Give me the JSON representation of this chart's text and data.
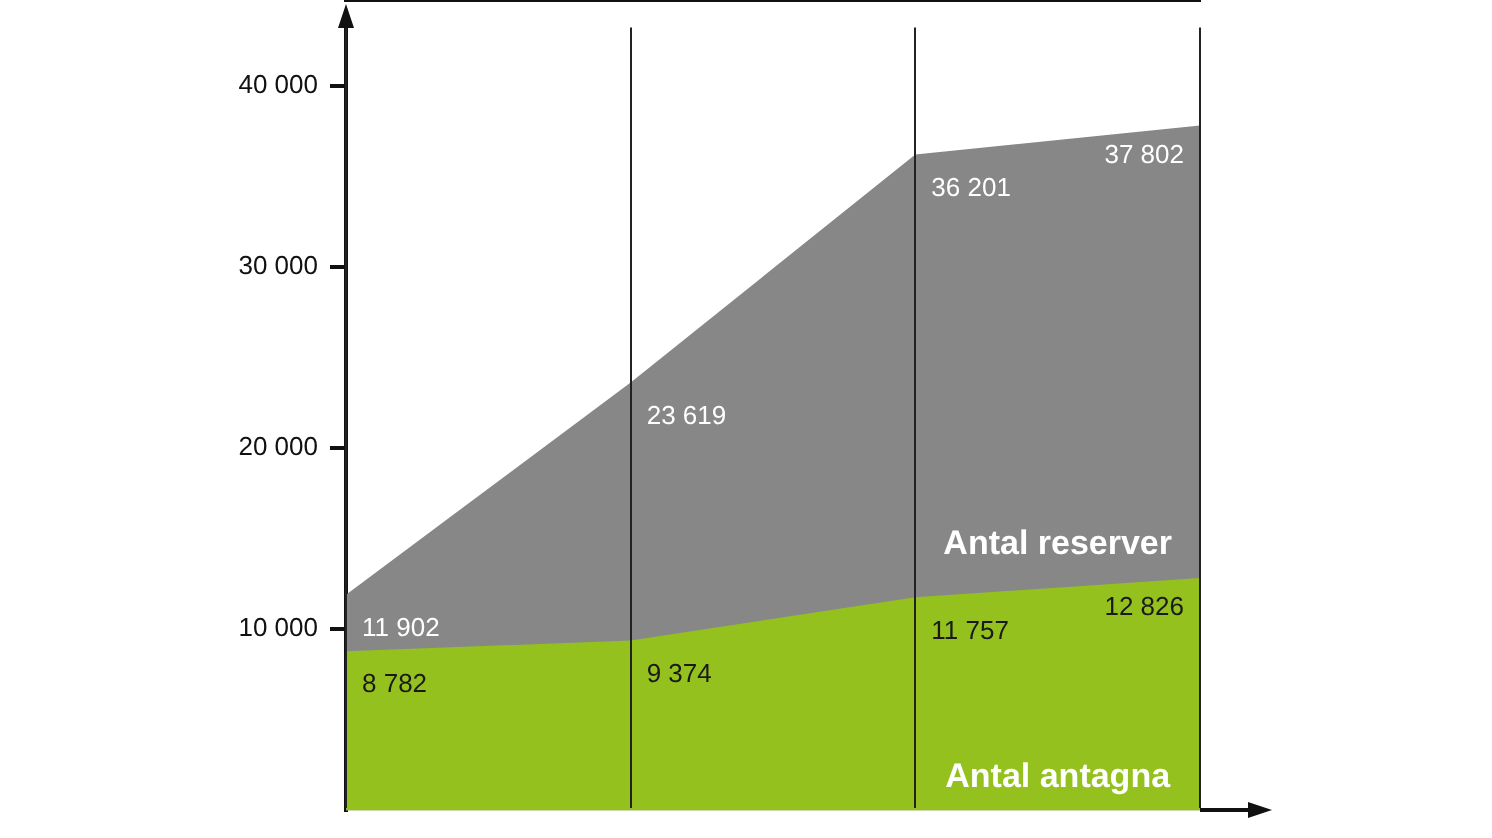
{
  "chart_data": {
    "type": "area",
    "categories": [
      null,
      null,
      null,
      null
    ],
    "series": [
      {
        "name": "Antal reserver",
        "color": "#878787",
        "values": [
          11902,
          23619,
          36201,
          37802
        ],
        "value_labels": [
          "11 902",
          "23 619",
          "36 201",
          "37 802"
        ]
      },
      {
        "name": "Antal antagna",
        "color": "#95c11f",
        "values": [
          8782,
          9374,
          11757,
          12826
        ],
        "value_labels": [
          "8 782",
          "9 374",
          "11 757",
          "12 826"
        ]
      }
    ],
    "ylim": [
      0,
      43200
    ],
    "yticks": [
      {
        "value": 10000,
        "label": "10 000"
      },
      {
        "value": 20000,
        "label": "20 000"
      },
      {
        "value": 30000,
        "label": "30 000"
      },
      {
        "value": 40000,
        "label": "40 000"
      }
    ],
    "grid": "x",
    "legend": false,
    "tick_labels": "y"
  }
}
